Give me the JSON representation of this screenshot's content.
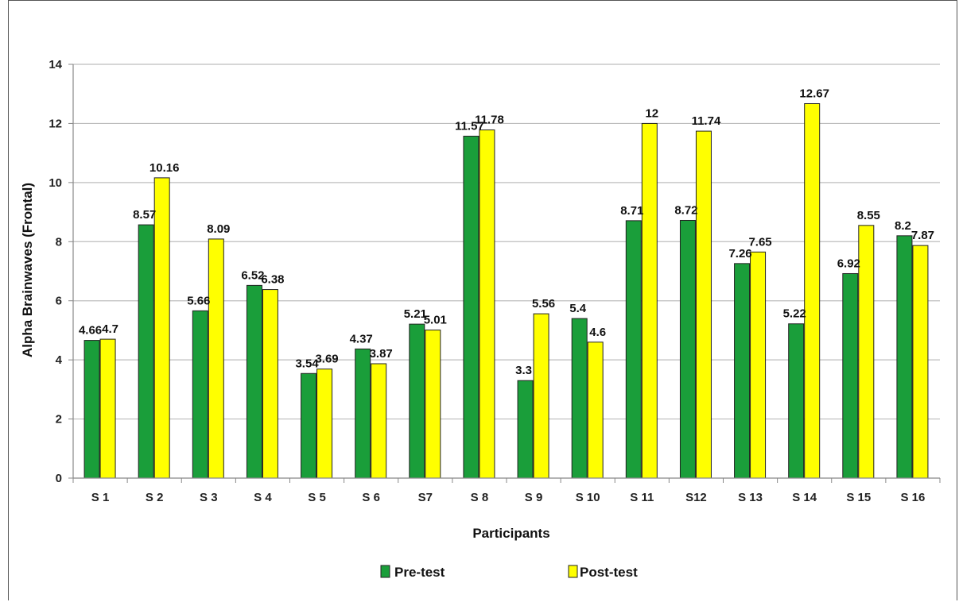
{
  "chart_data": {
    "type": "bar",
    "title": "",
    "xlabel": "Participants",
    "ylabel": "Alpha  Brainwaves (Frontal)",
    "categories": [
      "S 1",
      "S 2",
      "S 3",
      "S 4",
      "S 5",
      "S 6",
      "S7",
      "S 8",
      "S 9",
      "S 10",
      "S 11",
      "S12",
      "S 13",
      "S 14",
      "S 15",
      "S 16"
    ],
    "series": [
      {
        "name": "Pre-test",
        "color": "#1a9e3a",
        "values": [
          4.66,
          8.57,
          5.66,
          6.52,
          3.54,
          4.37,
          5.21,
          11.57,
          3.3,
          5.4,
          8.71,
          8.72,
          7.26,
          5.22,
          6.92,
          8.2
        ]
      },
      {
        "name": "Post-test",
        "color": "#ffff00",
        "values": [
          4.7,
          10.16,
          8.09,
          6.38,
          3.69,
          3.87,
          5.01,
          11.78,
          5.56,
          4.6,
          12,
          11.74,
          7.65,
          12.67,
          8.55,
          7.87
        ]
      }
    ],
    "ylim": [
      0,
      14
    ],
    "yticks": [
      0,
      2,
      4,
      6,
      8,
      10,
      12,
      14
    ],
    "grid": true,
    "legend_position": "bottom"
  }
}
